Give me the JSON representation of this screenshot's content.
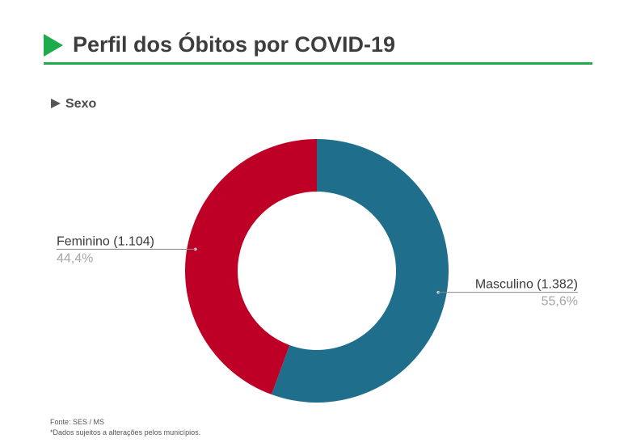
{
  "header": {
    "title": "Perfil dos Óbitos por COVID-19",
    "accent_color": "#1faa4b"
  },
  "section": {
    "label": "Sexo"
  },
  "chart_data": {
    "type": "pie",
    "donut": true,
    "slices": [
      {
        "label": "Masculino (1.382)",
        "name": "Masculino",
        "value": 1382,
        "percent_label": "55,6%",
        "color": "#1f6e8c"
      },
      {
        "label": "Feminino (1.104)",
        "name": "Feminino",
        "value": 1104,
        "percent_label": "44,4%",
        "color": "#bf0026"
      }
    ],
    "start_angle_deg": 0,
    "direction": "clockwise"
  },
  "footer": {
    "source": "Fonte: SES / MS",
    "note": "*Dados sujeitos a alterações pelos municípios."
  }
}
